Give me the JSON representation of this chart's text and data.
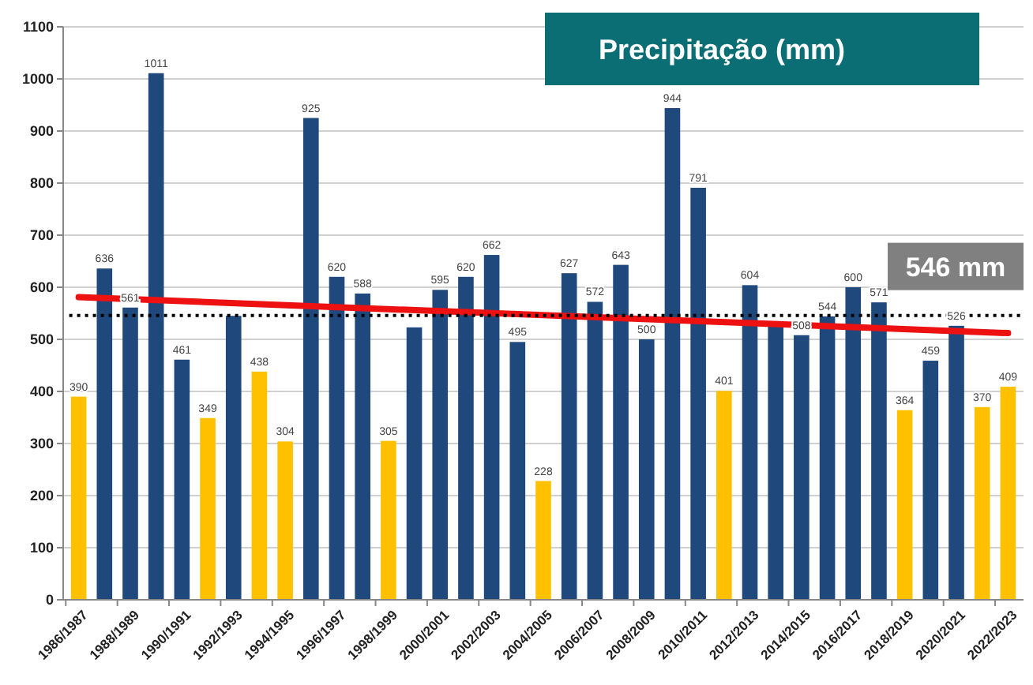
{
  "chart_data": {
    "type": "bar",
    "title": "Precipitação (mm)",
    "categories": [
      "1986/1987",
      null,
      "1988/1989",
      null,
      "1990/1991",
      null,
      "1992/1993",
      null,
      "1994/1995",
      null,
      "1996/1997",
      null,
      "1998/1999",
      null,
      "2000/2001",
      null,
      "2002/2003",
      null,
      "2004/2005",
      null,
      "2006/2007",
      null,
      "2008/2009",
      null,
      "2010/2011",
      null,
      "2012/2013",
      null,
      "2014/2015",
      null,
      "2016/2017",
      null,
      "2018/2019",
      null,
      "2020/2021",
      null,
      "2022/2023"
    ],
    "series": [
      {
        "values": [
          390,
          636,
          561,
          1011,
          461,
          349,
          545,
          438,
          304,
          925,
          620,
          588,
          305,
          523,
          595,
          620,
          662,
          495,
          228,
          627,
          572,
          643,
          500,
          944,
          791,
          401,
          604,
          526,
          508,
          544,
          600,
          571,
          364,
          459,
          526,
          370,
          409
        ],
        "colors": [
          "#ffc000",
          "#1f497d",
          "#1f497d",
          "#1f497d",
          "#1f497d",
          "#ffc000",
          "#1f497d",
          "#ffc000",
          "#ffc000",
          "#1f497d",
          "#1f497d",
          "#1f497d",
          "#ffc000",
          "#1f497d",
          "#1f497d",
          "#1f497d",
          "#1f497d",
          "#1f497d",
          "#ffc000",
          "#1f497d",
          "#1f497d",
          "#1f497d",
          "#1f497d",
          "#1f497d",
          "#1f497d",
          "#ffc000",
          "#1f497d",
          "#1f497d",
          "#1f497d",
          "#1f497d",
          "#1f497d",
          "#1f497d",
          "#ffc000",
          "#1f497d",
          "#1f497d",
          "#ffc000",
          "#ffc000"
        ],
        "value_labels": [
          "390",
          "636",
          "561",
          "1011",
          "461",
          "349",
          null,
          "438",
          "304",
          "925",
          "620",
          "588",
          "305",
          null,
          "595",
          "620",
          "662",
          "495",
          "228",
          "627",
          "572",
          "643",
          "500",
          "944",
          "791",
          "401",
          "604",
          null,
          "508",
          "544",
          "600",
          "571",
          "364",
          "459",
          "526",
          "370",
          "409"
        ]
      },
      {
        "type": "line",
        "x": [
          "1986/1987",
          "2022/2023"
        ],
        "values": [
          581,
          512
        ],
        "color": "#ee1111"
      }
    ],
    "ylim": [
      0,
      1100
    ],
    "yticks": [
      0,
      100,
      200,
      300,
      400,
      500,
      600,
      700,
      800,
      900,
      1000,
      1100
    ],
    "grid": "y",
    "ref_lines": [
      {
        "axis": "y",
        "value": 546,
        "label": "546 mm",
        "color": "#000000",
        "line_style": "dotted"
      }
    ]
  }
}
